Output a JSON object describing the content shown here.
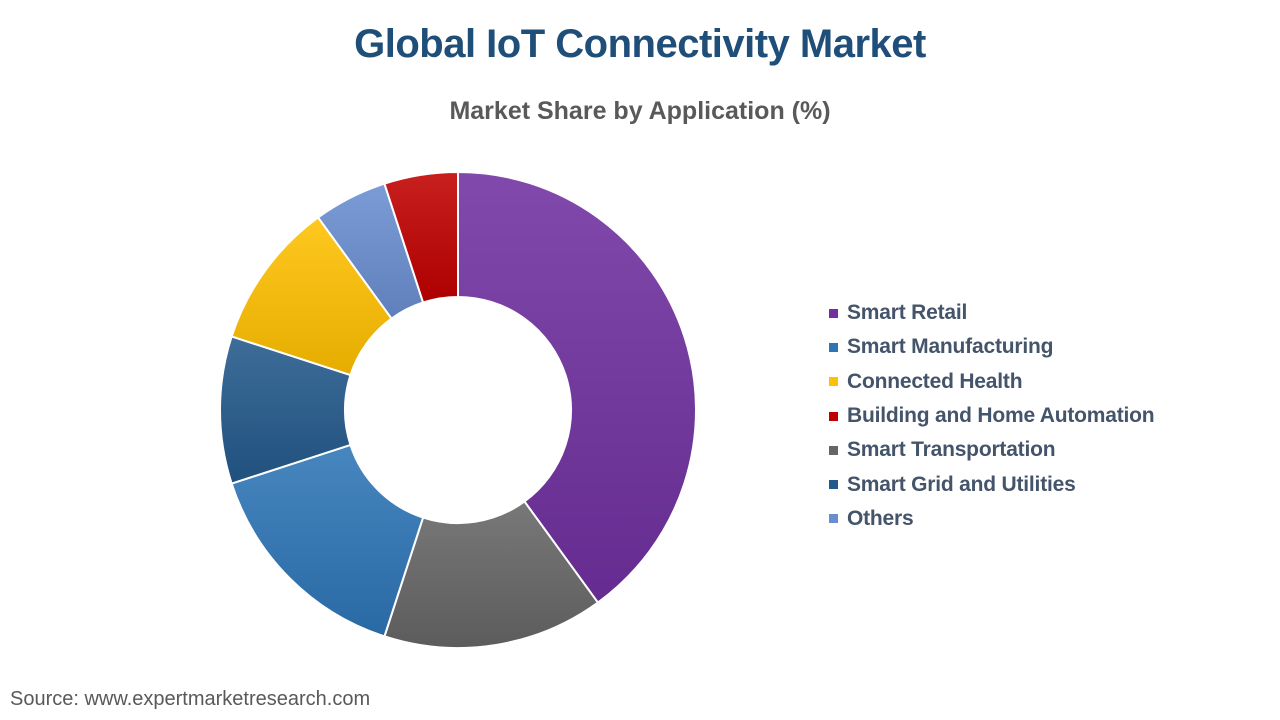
{
  "page": {
    "source": "Source: www.expertmarketresearch.com"
  },
  "colors": {
    "background": "#FFFFFF",
    "title_text": "#1F4E79",
    "subtitle_text": "#595959",
    "legend_text": "#44546A",
    "source_text": "#595959",
    "slice_separator": "#FFFFFF"
  },
  "chart_data": {
    "type": "pie",
    "variant": "donut",
    "title": "Global IoT Connectivity Market",
    "subtitle": "Market Share by Application (%)",
    "unit": "%",
    "legend_position": "right",
    "data_labels": "none",
    "start_angle_deg": 0,
    "direction": "clockwise",
    "inner_radius_ratio": 0.475,
    "categories": [
      "Smart Retail",
      "Smart Manufacturing",
      "Connected Health",
      "Building and Home Automation",
      "Smart Transportation",
      "Smart Grid and Utilities",
      "Others"
    ],
    "values": [
      40,
      15,
      10,
      5,
      15,
      10,
      5
    ],
    "colors": [
      "#7030A0",
      "#2E75B6",
      "#FFC000",
      "#C00000",
      "#666666",
      "#24598B",
      "#698ED0"
    ],
    "draw_order": [
      0,
      4,
      1,
      5,
      2,
      6,
      3
    ]
  }
}
